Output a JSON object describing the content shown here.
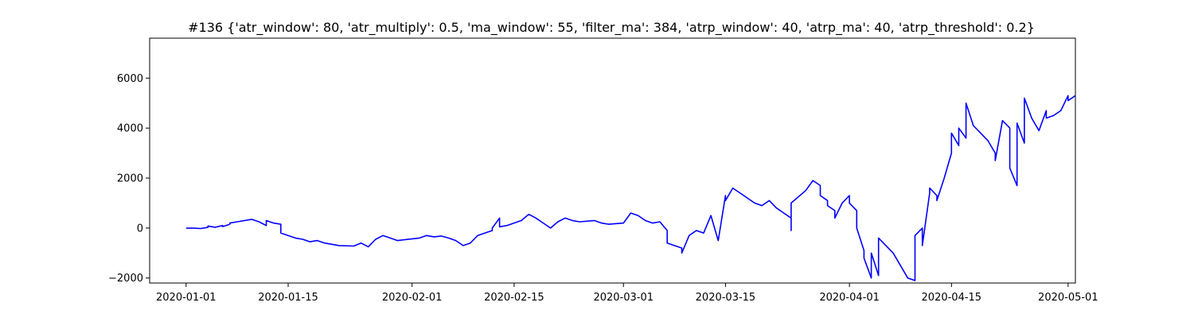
{
  "chart_data": {
    "type": "line",
    "title": "#136 {'atr_window': 80, 'atr_multiply': 0.5, 'ma_window': 55, 'filter_ma': 384, 'atrp_window': 40, 'atrp_ma': 40, 'atrp_threshold': 0.2}",
    "xlabel": "",
    "ylabel": "",
    "x_axis": "date",
    "xlim": [
      "2019-12-27",
      "2020-05-02"
    ],
    "ylim": [
      -2200,
      7600
    ],
    "x_ticks": [
      "2020-01-01",
      "2020-01-15",
      "2020-02-01",
      "2020-02-15",
      "2020-03-01",
      "2020-03-15",
      "2020-04-01",
      "2020-04-15",
      "2020-05-01"
    ],
    "y_ticks": [
      -2000,
      0,
      2000,
      4000,
      6000
    ],
    "grid": false,
    "legend": "none",
    "line_color": "#0000ff",
    "series": [
      {
        "points": [
          [
            "2020-01-01",
            0
          ],
          [
            "2020-01-02",
            0
          ],
          [
            "2020-01-03",
            -20
          ],
          [
            "2020-01-04",
            30
          ],
          [
            "2020-01-04",
            80
          ],
          [
            "2020-01-05",
            30
          ],
          [
            "2020-01-06",
            100
          ],
          [
            "2020-01-06",
            60
          ],
          [
            "2020-01-07",
            150
          ],
          [
            "2020-01-07",
            200
          ],
          [
            "2020-01-08",
            250
          ],
          [
            "2020-01-10",
            350
          ],
          [
            "2020-01-11",
            250
          ],
          [
            "2020-01-12",
            100
          ],
          [
            "2020-01-12",
            300
          ],
          [
            "2020-01-13",
            200
          ],
          [
            "2020-01-14",
            150
          ],
          [
            "2020-01-14",
            -200
          ],
          [
            "2020-01-16",
            -400
          ],
          [
            "2020-01-17",
            -450
          ],
          [
            "2020-01-18",
            -550
          ],
          [
            "2020-01-19",
            -500
          ],
          [
            "2020-01-20",
            -600
          ],
          [
            "2020-01-21",
            -650
          ],
          [
            "2020-01-22",
            -700
          ],
          [
            "2020-01-24",
            -720
          ],
          [
            "2020-01-25",
            -600
          ],
          [
            "2020-01-26",
            -750
          ],
          [
            "2020-01-27",
            -450
          ],
          [
            "2020-01-28",
            -300
          ],
          [
            "2020-01-29",
            -400
          ],
          [
            "2020-01-30",
            -500
          ],
          [
            "2020-02-02",
            -400
          ],
          [
            "2020-02-03",
            -300
          ],
          [
            "2020-02-04",
            -350
          ],
          [
            "2020-02-05",
            -320
          ],
          [
            "2020-02-06",
            -400
          ],
          [
            "2020-02-07",
            -500
          ],
          [
            "2020-02-08",
            -700
          ],
          [
            "2020-02-09",
            -600
          ],
          [
            "2020-02-10",
            -300
          ],
          [
            "2020-02-11",
            -200
          ],
          [
            "2020-02-12",
            -100
          ],
          [
            "2020-02-12",
            0
          ],
          [
            "2020-02-13",
            400
          ],
          [
            "2020-02-13",
            50
          ],
          [
            "2020-02-14",
            100
          ],
          [
            "2020-02-16",
            300
          ],
          [
            "2020-02-17",
            550
          ],
          [
            "2020-02-18",
            400
          ],
          [
            "2020-02-19",
            200
          ],
          [
            "2020-02-20",
            0
          ],
          [
            "2020-02-21",
            250
          ],
          [
            "2020-02-22",
            400
          ],
          [
            "2020-02-23",
            300
          ],
          [
            "2020-02-24",
            250
          ],
          [
            "2020-02-26",
            300
          ],
          [
            "2020-02-27",
            200
          ],
          [
            "2020-02-28",
            150
          ],
          [
            "2020-03-01",
            200
          ],
          [
            "2020-03-02",
            600
          ],
          [
            "2020-03-03",
            500
          ],
          [
            "2020-03-04",
            300
          ],
          [
            "2020-03-05",
            200
          ],
          [
            "2020-03-06",
            250
          ],
          [
            "2020-03-07",
            -100
          ],
          [
            "2020-03-07",
            -600
          ],
          [
            "2020-03-08",
            -700
          ],
          [
            "2020-03-09",
            -800
          ],
          [
            "2020-03-09",
            -1000
          ],
          [
            "2020-03-10",
            -300
          ],
          [
            "2020-03-11",
            -100
          ],
          [
            "2020-03-12",
            -200
          ],
          [
            "2020-03-13",
            500
          ],
          [
            "2020-03-14",
            -500
          ],
          [
            "2020-03-15",
            1300
          ],
          [
            "2020-03-15",
            1100
          ],
          [
            "2020-03-16",
            1600
          ],
          [
            "2020-03-17",
            1400
          ],
          [
            "2020-03-18",
            1200
          ],
          [
            "2020-03-19",
            1000
          ],
          [
            "2020-03-20",
            900
          ],
          [
            "2020-03-21",
            1100
          ],
          [
            "2020-03-22",
            800
          ],
          [
            "2020-03-23",
            600
          ],
          [
            "2020-03-24",
            400
          ],
          [
            "2020-03-24",
            -100
          ],
          [
            "2020-03-24",
            1000
          ],
          [
            "2020-03-26",
            1500
          ],
          [
            "2020-03-27",
            1900
          ],
          [
            "2020-03-28",
            1700
          ],
          [
            "2020-03-28",
            1300
          ],
          [
            "2020-03-29",
            1100
          ],
          [
            "2020-03-29",
            900
          ],
          [
            "2020-03-30",
            700
          ],
          [
            "2020-03-30",
            400
          ],
          [
            "2020-03-31",
            1000
          ],
          [
            "2020-04-01",
            1300
          ],
          [
            "2020-04-01",
            1000
          ],
          [
            "2020-04-02",
            700
          ],
          [
            "2020-04-02",
            0
          ],
          [
            "2020-04-03",
            -900
          ],
          [
            "2020-04-03",
            -1200
          ],
          [
            "2020-04-04",
            -2000
          ],
          [
            "2020-04-04",
            -1000
          ],
          [
            "2020-04-05",
            -1900
          ],
          [
            "2020-04-05",
            -400
          ],
          [
            "2020-04-07",
            -1000
          ],
          [
            "2020-04-09",
            -2000
          ],
          [
            "2020-04-10",
            -2100
          ],
          [
            "2020-04-10",
            -300
          ],
          [
            "2020-04-11",
            0
          ],
          [
            "2020-04-11",
            -700
          ],
          [
            "2020-04-12",
            1400
          ],
          [
            "2020-04-12",
            1600
          ],
          [
            "2020-04-13",
            1300
          ],
          [
            "2020-04-13",
            1100
          ],
          [
            "2020-04-14",
            2000
          ],
          [
            "2020-04-15",
            3000
          ],
          [
            "2020-04-15",
            3800
          ],
          [
            "2020-04-16",
            3300
          ],
          [
            "2020-04-16",
            4000
          ],
          [
            "2020-04-17",
            3600
          ],
          [
            "2020-04-17",
            5000
          ],
          [
            "2020-04-18",
            4100
          ],
          [
            "2020-04-19",
            3800
          ],
          [
            "2020-04-20",
            3500
          ],
          [
            "2020-04-21",
            3000
          ],
          [
            "2020-04-21",
            2700
          ],
          [
            "2020-04-22",
            4300
          ],
          [
            "2020-04-23",
            4000
          ],
          [
            "2020-04-23",
            2400
          ],
          [
            "2020-04-24",
            1700
          ],
          [
            "2020-04-24",
            4200
          ],
          [
            "2020-04-25",
            3400
          ],
          [
            "2020-04-25",
            5200
          ],
          [
            "2020-04-26",
            4400
          ],
          [
            "2020-04-27",
            3900
          ],
          [
            "2020-04-28",
            4700
          ],
          [
            "2020-04-28",
            4400
          ],
          [
            "2020-04-29",
            4500
          ],
          [
            "2020-04-30",
            4700
          ],
          [
            "2020-05-01",
            5300
          ],
          [
            "2020-05-01",
            5100
          ],
          [
            "2020-05-02",
            5300
          ]
        ]
      }
    ]
  }
}
